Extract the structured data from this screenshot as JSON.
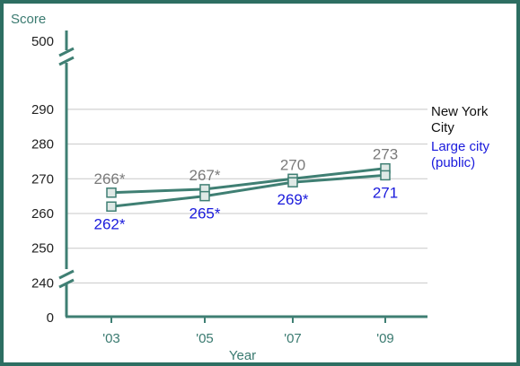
{
  "chart_data": {
    "type": "line",
    "ylabel": "Score",
    "xlabel": "Year",
    "categories": [
      "'03",
      "'05",
      "'07",
      "'09"
    ],
    "y_ticks": [
      240,
      250,
      260,
      270,
      280,
      290
    ],
    "y_break_top_label": "500",
    "y_bottom_label": "0",
    "ylim": [
      230,
      300
    ],
    "grid": true,
    "series": [
      {
        "name_lines": [
          "New York",
          "City"
        ],
        "values": [
          266,
          267,
          270,
          273
        ],
        "labels": [
          "266*",
          "267*",
          "270",
          "273"
        ],
        "color": "#7a7a7a",
        "label_position": "above"
      },
      {
        "name_lines": [
          "Large city",
          "(public)"
        ],
        "values": [
          262,
          265,
          269,
          271
        ],
        "labels": [
          "262*",
          "265*",
          "269*",
          "271"
        ],
        "color": "#1a1adc",
        "label_position": "below"
      }
    ],
    "line_color": "#3f7f73",
    "axis_color": "#3f7f73",
    "grid_color": "#c8c8c8",
    "legend_placement": "right"
  }
}
